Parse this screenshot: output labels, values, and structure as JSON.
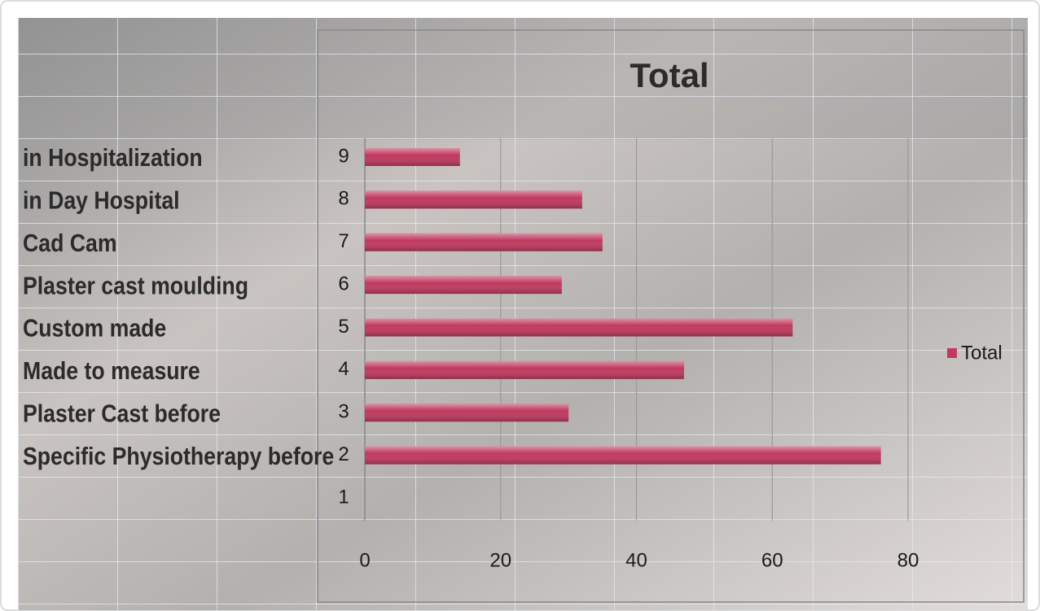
{
  "chart_data": {
    "type": "bar",
    "orientation": "horizontal",
    "title": "Total",
    "categories": [
      "1",
      "2",
      "3",
      "4",
      "5",
      "6",
      "7",
      "8",
      "9"
    ],
    "row_labels": [
      null,
      "Specific Physiotherapy before",
      "Plaster Cast before",
      "Made to measure",
      "Custom made",
      "Plaster cast moulding",
      "Cad Cam",
      "in Day Hospital",
      "in Hospitalization"
    ],
    "series": [
      {
        "name": "Total",
        "color": "#c0395e",
        "values": [
          null,
          76,
          30,
          47,
          63,
          29,
          35,
          32,
          14
        ]
      }
    ],
    "xlim": [
      0,
      80
    ],
    "xticks": [
      0,
      20,
      40,
      60,
      80
    ],
    "grid": true,
    "legend": "right"
  }
}
